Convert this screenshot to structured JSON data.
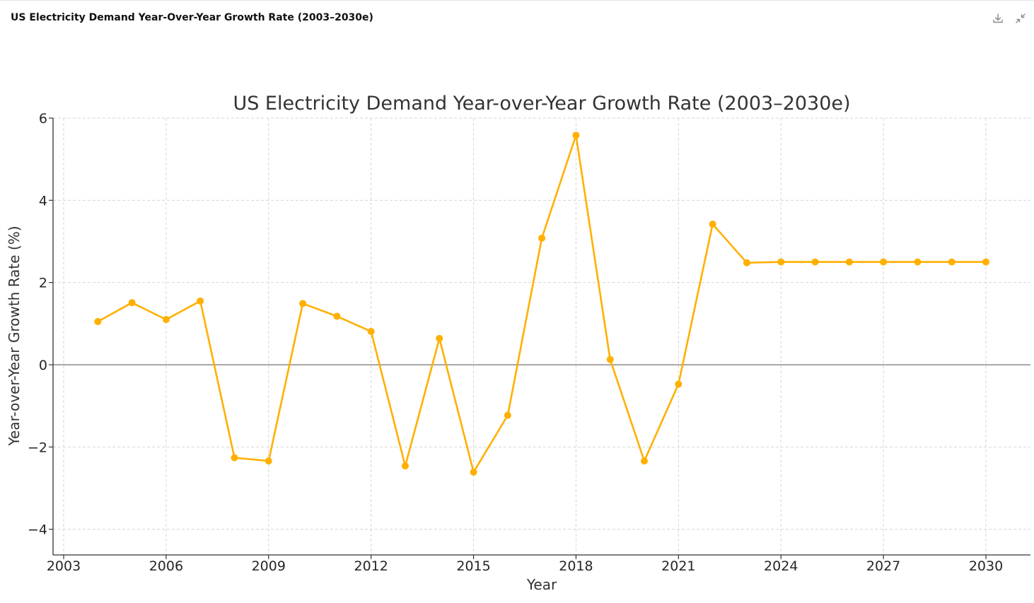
{
  "header": {
    "title": "US Electricity Demand Year-Over-Year Growth Rate (2003–2030e)",
    "download_icon": "download-icon",
    "collapse_icon": "collapse-icon"
  },
  "chart_data": {
    "type": "line",
    "title": "US Electricity Demand Year-over-Year Growth Rate (2003–2030e)",
    "xlabel": "Year",
    "ylabel": "Year-over-Year Growth Rate (%)",
    "xlim": [
      2003,
      2030
    ],
    "ylim": [
      -4.6,
      6
    ],
    "x_ticks": [
      2003,
      2006,
      2009,
      2012,
      2015,
      2018,
      2021,
      2024,
      2027,
      2030
    ],
    "y_ticks": [
      -4,
      -2,
      0,
      2,
      4,
      6
    ],
    "y_tick_labels": [
      "−4",
      "−2",
      "0",
      "2",
      "4",
      "6"
    ],
    "grid": true,
    "line_color": "#FFB000",
    "zero_line_color": "#888888",
    "series": [
      {
        "x": [
          2004,
          2005,
          2006,
          2007,
          2008,
          2009,
          2010,
          2011,
          2012,
          2013,
          2014,
          2015,
          2016,
          2017,
          2018,
          2019,
          2020,
          2021,
          2022,
          2023,
          2024,
          2025,
          2026,
          2027,
          2028,
          2029,
          2030
        ],
        "values": [
          1.05,
          1.51,
          1.1,
          1.55,
          -2.26,
          -2.34,
          1.49,
          1.18,
          0.81,
          -2.46,
          0.64,
          -2.61,
          -1.23,
          3.08,
          5.58,
          0.13,
          -2.34,
          -0.47,
          3.42,
          2.48,
          2.5,
          2.5,
          2.5,
          2.5,
          2.5,
          2.5,
          2.5
        ]
      }
    ]
  }
}
